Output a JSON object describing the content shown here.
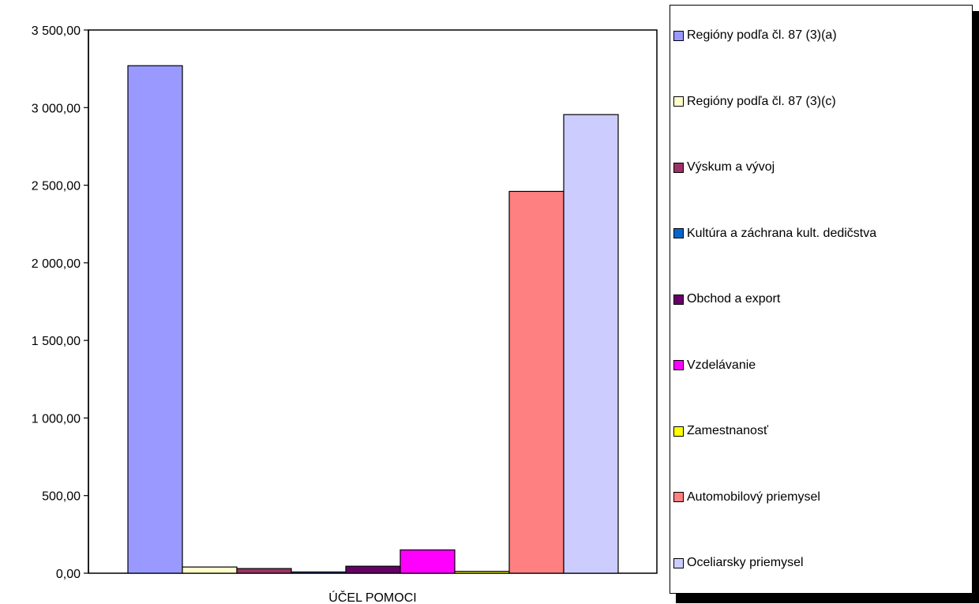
{
  "chart_data": {
    "type": "bar",
    "xlabel": "ÚČEL POMOCI",
    "ylim": [
      0,
      3500
    ],
    "y_ticks": [
      "0,00",
      "500,00",
      "1 000,00",
      "1 500,00",
      "2 000,00",
      "2 500,00",
      "3 000,00",
      "3 500,00"
    ],
    "grid": false,
    "legend_position": "right",
    "series": [
      {
        "name": "Regióny podľa čl. 87 (3)(a)",
        "value": 3270,
        "color": "#9999FF"
      },
      {
        "name": "Regióny podľa čl. 87 (3)(c)",
        "value": 40,
        "color": "#FFFFCC"
      },
      {
        "name": "Výskum a vývoj",
        "value": 30,
        "color": "#993366"
      },
      {
        "name": "Kultúra a záchrana kult. dedičstva",
        "value": 8,
        "color": "#0066CC"
      },
      {
        "name": "Obchod a export",
        "value": 45,
        "color": "#660066"
      },
      {
        "name": "Vzdelávanie",
        "value": 150,
        "color": "#FF00FF"
      },
      {
        "name": "Zamestnanosť",
        "value": 12,
        "color": "#FFFF00"
      },
      {
        "name": "Automobilový priemysel",
        "value": 2460,
        "color": "#FF8080"
      },
      {
        "name": "Oceliarsky priemysel",
        "value": 2955,
        "color": "#CCCCFF"
      }
    ]
  }
}
